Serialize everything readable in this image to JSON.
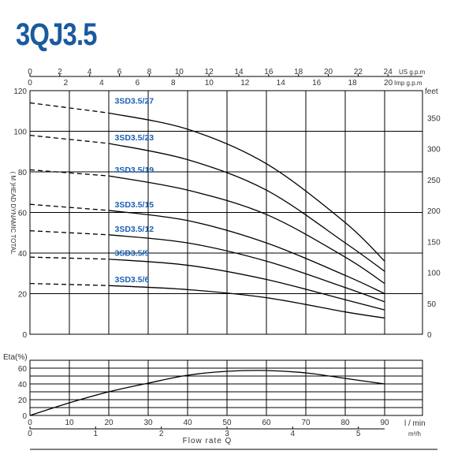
{
  "title": "3QJ3.5",
  "chart_data": [
    {
      "type": "line",
      "title": "3QJ3.5",
      "x_bottom_ticks": [
        "0",
        "10",
        "20",
        "30",
        "40",
        "50",
        "60",
        "70",
        "80",
        "90"
      ],
      "x_bottom_unit": "l / min",
      "x_m3h_ticks": [
        "0",
        "1",
        "2",
        "3",
        "4",
        "5"
      ],
      "x_m3h_unit": "m³/h",
      "xlabel": "Flow rate  Q",
      "x_top_us_ticks": [
        "0",
        "2",
        "4",
        "6",
        "8",
        "10",
        "12",
        "14",
        "16",
        "18",
        "20",
        "22",
        "24"
      ],
      "x_top_us_unit": "US g.p.m",
      "x_top_imp_ticks": [
        "0",
        "2",
        "4",
        "6",
        "8",
        "10",
        "12",
        "14",
        "16",
        "18",
        "20"
      ],
      "x_top_imp_unit": "Imp g.p.m",
      "ylabel": "( M )HEAD DYNAMIC TOTAL",
      "y_left_ticks": [
        "0",
        "20",
        "40",
        "60",
        "80",
        "100",
        "120"
      ],
      "y_right_label": "feet",
      "y_right_ticks": [
        "0",
        "50",
        "100",
        "150",
        "200",
        "250",
        "300",
        "350"
      ],
      "xlim": [
        0,
        90
      ],
      "ylim": [
        0,
        120
      ],
      "grid": true,
      "series": [
        {
          "name": "3SD3.5/27",
          "dashed_x": [
            0,
            20
          ],
          "dashed_y": [
            114,
            109
          ],
          "x": [
            20,
            40,
            60,
            80,
            90
          ],
          "y": [
            109,
            101,
            84,
            55,
            36
          ]
        },
        {
          "name": "3SD3.5/23",
          "dashed_x": [
            0,
            20
          ],
          "dashed_y": [
            98,
            94
          ],
          "x": [
            20,
            40,
            60,
            80,
            90
          ],
          "y": [
            94,
            86,
            71,
            45,
            31
          ]
        },
        {
          "name": "3SD3.5/19",
          "dashed_x": [
            0,
            20
          ],
          "dashed_y": [
            81,
            78
          ],
          "x": [
            20,
            40,
            60,
            80,
            90
          ],
          "y": [
            78,
            71,
            59,
            38,
            25
          ]
        },
        {
          "name": "3SD3.5/15",
          "dashed_x": [
            0,
            20
          ],
          "dashed_y": [
            64,
            61
          ],
          "x": [
            20,
            40,
            60,
            80,
            90
          ],
          "y": [
            61,
            56,
            45,
            29,
            20
          ]
        },
        {
          "name": "3SD3.5/12",
          "dashed_x": [
            0,
            20
          ],
          "dashed_y": [
            51,
            49
          ],
          "x": [
            20,
            40,
            60,
            80,
            90
          ],
          "y": [
            49,
            45,
            36,
            23,
            16
          ]
        },
        {
          "name": "3SD3.5/9",
          "dashed_x": [
            0,
            20
          ],
          "dashed_y": [
            38,
            37
          ],
          "x": [
            20,
            40,
            60,
            80,
            90
          ],
          "y": [
            37,
            34,
            27,
            17,
            12
          ]
        },
        {
          "name": "3SD3.5/6",
          "dashed_x": [
            0,
            20
          ],
          "dashed_y": [
            25,
            24
          ],
          "x": [
            20,
            40,
            60,
            80,
            90
          ],
          "y": [
            24,
            22,
            18,
            11,
            8
          ]
        }
      ]
    },
    {
      "type": "line",
      "ylabel": "Eta(%)",
      "y_ticks": [
        "0",
        "20",
        "40",
        "60"
      ],
      "ylim": [
        0,
        70
      ],
      "xlim": [
        0,
        90
      ],
      "grid": true,
      "series": [
        {
          "x": [
            0,
            10,
            20,
            30,
            40,
            50,
            60,
            70,
            80,
            90
          ],
          "y": [
            0,
            16,
            30,
            41,
            51,
            56,
            57,
            54,
            47,
            40
          ]
        }
      ]
    }
  ]
}
